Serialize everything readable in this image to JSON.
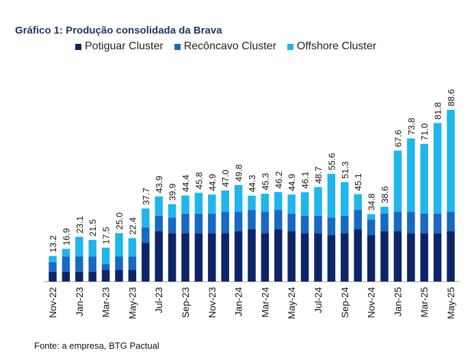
{
  "title": "Gráfico 1: Produção consolidada da Brava",
  "source": "Fonte: a empresa, BTG Pactual",
  "colors": {
    "potiguar": "#0d2566",
    "reconcavo": "#1769c4",
    "offshore": "#1fb6ec"
  },
  "chart_data": {
    "type": "bar",
    "stacked": true,
    "title": "Gráfico 1: Produção consolidada da Brava",
    "legend_position": "top",
    "grid": false,
    "months": [
      "Nov-22",
      "Dec-22",
      "Jan-23",
      "Feb-23",
      "Mar-23",
      "Apr-23",
      "May-23",
      "Jun-23",
      "Jul-23",
      "Aug-23",
      "Sep-23",
      "Oct-23",
      "Nov-23",
      "Dec-23",
      "Jan-24",
      "Feb-24",
      "Mar-24",
      "Apr-24",
      "May-24",
      "Jun-24",
      "Jul-24",
      "Aug-24",
      "Sep-24",
      "Oct-24",
      "Nov-24",
      "Dec-24",
      "Jan-25",
      "Feb-25",
      "Mar-25",
      "Apr-25",
      "May-25"
    ],
    "tick_labels": [
      "Nov-22",
      "Jan-23",
      "Mar-23",
      "May-23",
      "Jul-23",
      "Sep-23",
      "Nov-23",
      "Jan-24",
      "Mar-24",
      "May-24",
      "Jul-24",
      "Sep-24",
      "Nov-24",
      "Jan-25",
      "Mar-25",
      "May-25"
    ],
    "totals": [
      13.2,
      16.9,
      23.1,
      21.5,
      17.5,
      25.0,
      22.4,
      37.7,
      43.9,
      39.9,
      44.4,
      45.8,
      44.9,
      47.0,
      49.8,
      44.3,
      45.3,
      46.2,
      44.9,
      46.1,
      48.7,
      55.6,
      51.3,
      45.1,
      34.8,
      38.6,
      67.6,
      73.8,
      71.0,
      81.8,
      88.6
    ],
    "total_labels": [
      "13.2",
      "16.9",
      "23.1",
      "21.5",
      "17.5",
      "25.0",
      "22.4",
      "37.7",
      "43.9",
      "39.9",
      "44.4",
      "45.8",
      "44.9",
      "47.0",
      "49.8",
      "44.3",
      "45.3",
      "46.2",
      "44.9",
      "46.1",
      "48.7",
      "55.6",
      "51.3",
      "45.1",
      "34.8",
      "38.6",
      "67.6",
      "73.8",
      "71.0",
      "81.8",
      "88.6"
    ],
    "series": [
      {
        "name": "Potiguar Cluster",
        "values": [
          5,
          5,
          5,
          5,
          6,
          6,
          6,
          20,
          26,
          25,
          25,
          25,
          25,
          25,
          26,
          27,
          25,
          27,
          26,
          25,
          25,
          24,
          25,
          27,
          24,
          26,
          26,
          25,
          25,
          25,
          26
        ]
      },
      {
        "name": "Recôncavo Cluster",
        "values": [
          5,
          8,
          8,
          8,
          3,
          7,
          7,
          8,
          8,
          8,
          10,
          10,
          10,
          11,
          10,
          10,
          11,
          10,
          9,
          9,
          9,
          9,
          9,
          10,
          8,
          9,
          10,
          11,
          10,
          10,
          10
        ]
      },
      {
        "name": "Offshore Cluster",
        "values": [
          3.2,
          3.9,
          10.1,
          8.5,
          8.5,
          12.0,
          9.4,
          9.7,
          9.9,
          6.9,
          9.4,
          10.8,
          9.9,
          11.0,
          13.8,
          7.3,
          9.3,
          9.2,
          9.9,
          12.1,
          14.7,
          22.6,
          17.3,
          8.1,
          2.8,
          3.6,
          31.6,
          37.8,
          36.0,
          46.8,
          52.6
        ]
      }
    ],
    "ylim": [
      0,
      95
    ]
  }
}
